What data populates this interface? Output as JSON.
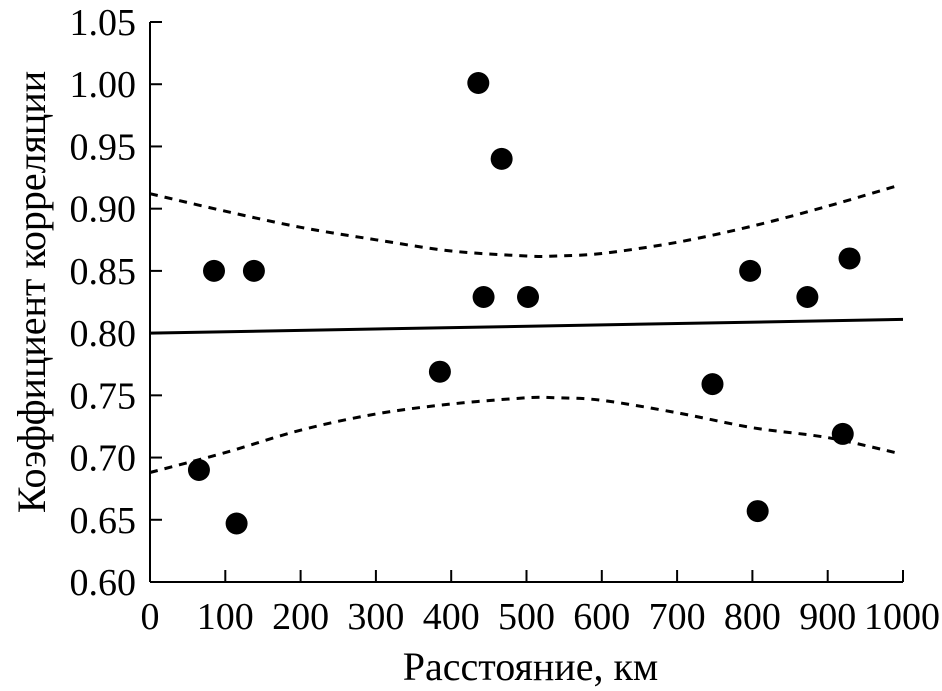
{
  "chart_data": {
    "type": "scatter",
    "title": "",
    "xlabel": "Расстояние, км",
    "ylabel": "Коэффициент корреляции",
    "xlim": [
      0,
      1000
    ],
    "ylim": [
      0.6,
      1.05
    ],
    "x_ticks": [
      0,
      100,
      200,
      300,
      400,
      500,
      600,
      700,
      800,
      900,
      1000
    ],
    "y_ticks": [
      0.6,
      0.65,
      0.7,
      0.75,
      0.8,
      0.85,
      0.9,
      0.95,
      1.0,
      1.05
    ],
    "x_tick_labels": [
      "0",
      "100",
      "200",
      "300",
      "400",
      "500",
      "600",
      "700",
      "800",
      "900",
      "1000"
    ],
    "y_tick_labels": [
      "0.60",
      "0.65",
      "0.70",
      "0.75",
      "0.80",
      "0.85",
      "0.90",
      "0.95",
      "1.00",
      "1.05"
    ],
    "grid": false,
    "legend": "none",
    "points": [
      {
        "x": 65,
        "y": 0.69
      },
      {
        "x": 85,
        "y": 0.85
      },
      {
        "x": 115,
        "y": 0.647
      },
      {
        "x": 138,
        "y": 0.85
      },
      {
        "x": 385,
        "y": 0.769
      },
      {
        "x": 436,
        "y": 1.001
      },
      {
        "x": 443,
        "y": 0.829
      },
      {
        "x": 467,
        "y": 0.94
      },
      {
        "x": 502,
        "y": 0.829
      },
      {
        "x": 747,
        "y": 0.759
      },
      {
        "x": 797,
        "y": 0.85
      },
      {
        "x": 807,
        "y": 0.657
      },
      {
        "x": 873,
        "y": 0.829
      },
      {
        "x": 920,
        "y": 0.719
      },
      {
        "x": 929,
        "y": 0.86
      }
    ],
    "regression_line": {
      "style": "solid",
      "x": [
        0,
        1000
      ],
      "y": [
        0.8,
        0.811
      ]
    },
    "confidence_upper": {
      "style": "dashed",
      "x": [
        0,
        100,
        200,
        300,
        400,
        500,
        540,
        600,
        700,
        800,
        900,
        990
      ],
      "y": [
        0.912,
        0.898,
        0.885,
        0.875,
        0.866,
        0.862,
        0.862,
        0.864,
        0.873,
        0.886,
        0.902,
        0.918
      ]
    },
    "confidence_lower": {
      "style": "dashed",
      "x": [
        0,
        100,
        200,
        300,
        400,
        500,
        540,
        600,
        700,
        800,
        900,
        990
      ],
      "y": [
        0.688,
        0.704,
        0.722,
        0.735,
        0.743,
        0.748,
        0.748,
        0.746,
        0.736,
        0.724,
        0.716,
        0.704
      ]
    },
    "colors": {
      "marker": "#000000",
      "line": "#000000",
      "axis": "#000000"
    }
  }
}
